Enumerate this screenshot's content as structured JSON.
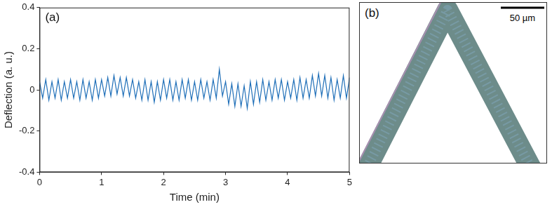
{
  "chart_data": {
    "type": "line",
    "annotations": [
      "(a)"
    ],
    "x_label": "Time (min)",
    "y_label": "Deflection (a. u.)",
    "xlim": [
      0,
      5
    ],
    "xticks": [
      0,
      1,
      2,
      3,
      4,
      5
    ],
    "ylim": [
      -0.4,
      0.4
    ],
    "yticks": [
      -0.4,
      -0.2,
      0,
      0.2,
      0.4
    ],
    "grid": false,
    "series": [
      {
        "name": "Deflection",
        "color": "#1f6fb8",
        "marker": "none",
        "line_style": "solid",
        "x": [
          0,
          0.05,
          0.1,
          0.15,
          0.2,
          0.25,
          0.3,
          0.35,
          0.4,
          0.45,
          0.5,
          0.55,
          0.6,
          0.65,
          0.7,
          0.75,
          0.8,
          0.85,
          0.9,
          0.95,
          1,
          1.05,
          1.1,
          1.15,
          1.2,
          1.25,
          1.3,
          1.35,
          1.4,
          1.45,
          1.5,
          1.55,
          1.6,
          1.65,
          1.7,
          1.75,
          1.8,
          1.85,
          1.9,
          1.95,
          2,
          2.05,
          2.1,
          2.15,
          2.2,
          2.25,
          2.3,
          2.35,
          2.4,
          2.45,
          2.5,
          2.55,
          2.6,
          2.65,
          2.7,
          2.75,
          2.8,
          2.85,
          2.9,
          2.95,
          3,
          3.05,
          3.1,
          3.15,
          3.2,
          3.25,
          3.3,
          3.35,
          3.4,
          3.45,
          3.5,
          3.55,
          3.6,
          3.65,
          3.7,
          3.75,
          3.8,
          3.85,
          3.9,
          3.95,
          4,
          4.05,
          4.1,
          4.15,
          4.2,
          4.25,
          4.3,
          4.35,
          4.4,
          4.45,
          4.5,
          4.55,
          4.6,
          4.65,
          4.7,
          4.75,
          4.8,
          4.85,
          4.9,
          4.95,
          5
        ],
        "values": [
          0.04,
          -0.04,
          0.05,
          -0.05,
          0.04,
          -0.04,
          0.05,
          -0.05,
          0.04,
          -0.04,
          0.05,
          -0.04,
          0.04,
          -0.05,
          0.05,
          -0.04,
          0.04,
          -0.05,
          0.05,
          -0.04,
          0.05,
          -0.03,
          0.06,
          -0.03,
          0.07,
          -0.02,
          0.06,
          -0.03,
          0.06,
          -0.03,
          0.05,
          -0.04,
          0.04,
          -0.05,
          0.05,
          -0.05,
          0.04,
          -0.06,
          0.04,
          -0.05,
          0.05,
          -0.04,
          0.05,
          -0.05,
          0.04,
          -0.05,
          0.05,
          -0.04,
          0.05,
          -0.05,
          0.04,
          -0.05,
          0.05,
          -0.04,
          0.04,
          -0.05,
          0.05,
          -0.04,
          0.1,
          -0.03,
          0.04,
          -0.07,
          0.03,
          -0.08,
          0.03,
          -0.08,
          0.02,
          -0.09,
          0.04,
          -0.07,
          0.04,
          -0.06,
          0.05,
          -0.05,
          0.04,
          -0.05,
          0.05,
          -0.04,
          0.05,
          -0.05,
          0.04,
          -0.04,
          0.05,
          -0.05,
          0.06,
          -0.04,
          0.05,
          -0.04,
          0.07,
          -0.03,
          0.08,
          -0.03,
          0.07,
          -0.04,
          0.06,
          -0.05,
          0.05,
          -0.04,
          0.07,
          -0.04,
          0.06
        ]
      }
    ]
  },
  "image_panel": {
    "label": "(b)",
    "scale_bar": "50 µm"
  }
}
